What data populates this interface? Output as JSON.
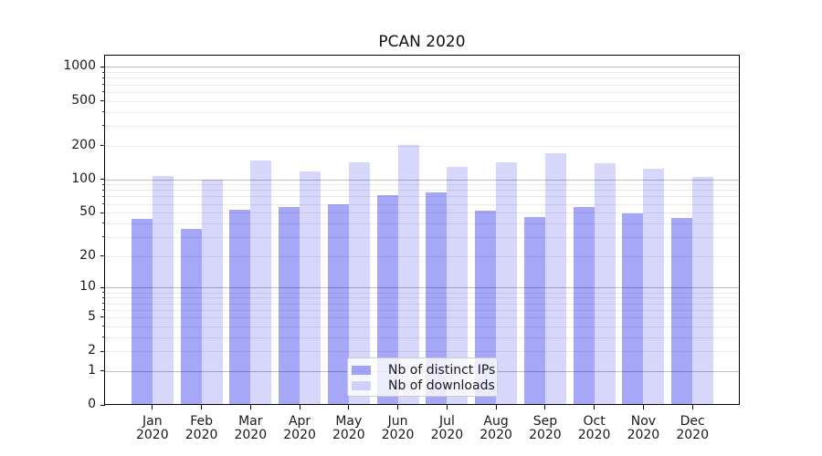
{
  "figure": {
    "background": "#ffffff"
  },
  "chart_data": {
    "type": "bar",
    "title": "PCAN 2020",
    "categories": [
      "Jan",
      "Feb",
      "Mar",
      "Apr",
      "May",
      "Jun",
      "Jul",
      "Aug",
      "Sep",
      "Oct",
      "Nov",
      "Dec"
    ],
    "x_year_label": "2020",
    "series": [
      {
        "name": "Nb of distinct IPs",
        "color": "rgba(10,10,235,0.36)",
        "values": [
          43,
          35,
          52,
          55,
          58,
          70,
          75,
          51,
          45,
          55,
          48,
          44
        ]
      },
      {
        "name": "Nb of downloads",
        "color": "rgba(10,10,235,0.165)",
        "values": [
          105,
          98,
          144,
          115,
          139,
          198,
          127,
          139,
          168,
          136,
          122,
          102
        ]
      }
    ],
    "yscale": "log1p",
    "yticks": [
      1000,
      500,
      200,
      100,
      50,
      20,
      10,
      5,
      2,
      1,
      0
    ],
    "ylim": [
      0,
      1310
    ],
    "grid": true,
    "legend_position": "lower-center"
  },
  "colors": {
    "major_grid": "#bdbdbd",
    "minor_grid": "#eaeaea",
    "axis": "#000000",
    "text": "#1a1a1a"
  }
}
